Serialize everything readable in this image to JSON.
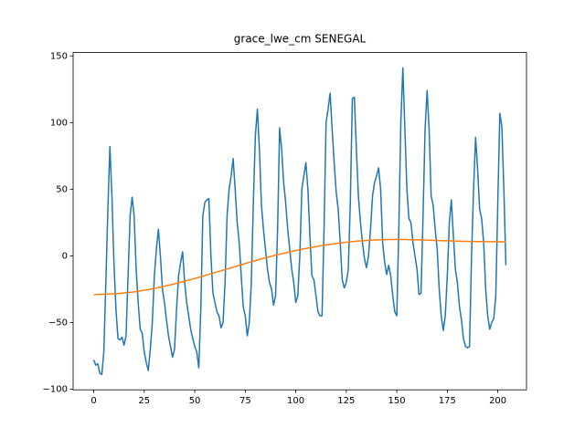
{
  "chart_data": {
    "type": "line",
    "title": "grace_lwe_cm SENEGAL",
    "xlim": [
      -10.2,
      214.2
    ],
    "xticks": [
      0,
      25,
      50,
      75,
      100,
      125,
      150,
      175,
      200
    ],
    "ylim": [
      -100.5,
      152.5
    ],
    "yticks": [
      {
        "value": -100,
        "label": "−100"
      },
      {
        "value": -50,
        "label": "−50"
      },
      0,
      50,
      100,
      150
    ],
    "grid": false,
    "series": [
      {
        "color": "#1f77b4",
        "values": [
          -78,
          -82,
          -81,
          -88,
          -89,
          -72,
          -20,
          35,
          82,
          45,
          -5,
          -40,
          -62,
          -63,
          -61,
          -67,
          -60,
          -15,
          30,
          44,
          30,
          -10,
          -35,
          -55,
          -58,
          -72,
          -80,
          -86,
          -70,
          -50,
          -15,
          5,
          20,
          0,
          -25,
          -35,
          -48,
          -60,
          -68,
          -76,
          -70,
          -40,
          -15,
          -5,
          3,
          -20,
          -35,
          -45,
          -55,
          -62,
          -68,
          -72,
          -84,
          -40,
          30,
          40,
          42,
          43,
          0,
          -28,
          -35,
          -42,
          -45,
          -54,
          -50,
          -20,
          30,
          50,
          60,
          73,
          50,
          25,
          10,
          -15,
          -38,
          -45,
          -60,
          -50,
          -20,
          40,
          90,
          110,
          80,
          38,
          20,
          5,
          -10,
          -20,
          -25,
          -37,
          -30,
          20,
          96,
          80,
          55,
          40,
          20,
          5,
          -10,
          -20,
          -35,
          -30,
          0,
          50,
          60,
          70,
          50,
          15,
          -15,
          -18,
          -30,
          -42,
          -45,
          -45,
          20,
          100,
          110,
          122,
          95,
          70,
          48,
          35,
          10,
          -18,
          -24,
          -20,
          -10,
          40,
          118,
          119,
          80,
          45,
          25,
          10,
          -2,
          -9,
          0,
          20,
          45,
          55,
          60,
          66,
          50,
          10,
          -5,
          -14,
          -7,
          -15,
          -30,
          -42,
          -45,
          20,
          100,
          141,
          95,
          50,
          28,
          25,
          10,
          0,
          -10,
          -29,
          -28,
          30,
          95,
          124,
          95,
          45,
          38,
          20,
          5,
          -25,
          -45,
          -56,
          -45,
          -15,
          25,
          42,
          15,
          -10,
          -20,
          -38,
          -48,
          -62,
          -68,
          -69,
          -68,
          0,
          50,
          89,
          65,
          35,
          28,
          10,
          -25,
          -45,
          -55,
          -50,
          -47,
          -30,
          40,
          107,
          97,
          50,
          -7
        ]
      },
      {
        "color": "#ff7f0e",
        "values": [
          -29,
          -29,
          -28.9,
          -28.9,
          -28.8,
          -28.8,
          -28.7,
          -28.7,
          -28.6,
          -28.6,
          -28.5,
          -28.4,
          -28.2,
          -28.1,
          -27.9,
          -27.8,
          -27.6,
          -27.5,
          -27.3,
          -27.2,
          -27,
          -26.8,
          -26.5,
          -26.3,
          -26,
          -25.8,
          -25.5,
          -25.3,
          -25,
          -24.8,
          -24.5,
          -24.2,
          -23.8,
          -23.5,
          -23.1,
          -22.8,
          -22.4,
          -22.1,
          -21.7,
          -21.4,
          -21,
          -20.6,
          -20.2,
          -19.8,
          -19.4,
          -19,
          -18.6,
          -18.2,
          -17.8,
          -17.4,
          -17,
          -16.6,
          -16.1,
          -15.7,
          -15.2,
          -14.8,
          -14.3,
          -13.9,
          -13.4,
          -13,
          -12.5,
          -12.1,
          -11.6,
          -11.2,
          -10.7,
          -10.3,
          -9.8,
          -9.4,
          -8.9,
          -8.5,
          -8,
          -7.6,
          -7.1,
          -6.7,
          -6.2,
          -5.8,
          -5.3,
          -4.9,
          -4.4,
          -4,
          -3.5,
          -3.1,
          -2.7,
          -2.3,
          -1.9,
          -1.5,
          -1.1,
          -0.7,
          -0.3,
          0.1,
          0.5,
          0.9,
          1.2,
          1.6,
          1.9,
          2.3,
          2.6,
          3,
          3.3,
          3.7,
          4,
          4.3,
          4.6,
          4.9,
          5.2,
          5.5,
          5.8,
          6.1,
          6.4,
          6.7,
          7,
          7.2,
          7.5,
          7.7,
          7.9,
          8.2,
          8.4,
          8.6,
          8.8,
          9.1,
          9.3,
          9.5,
          9.6,
          9.8,
          10,
          10.2,
          10.3,
          10.5,
          10.7,
          10.8,
          11,
          11.1,
          11.2,
          11.3,
          11.4,
          11.5,
          11.6,
          11.7,
          11.8,
          11.9,
          12,
          12,
          12.1,
          12.1,
          12.1,
          12.2,
          12.2,
          12.2,
          12.2,
          12.3,
          12.3,
          12.3,
          12.2,
          12.2,
          12.2,
          12.2,
          12.1,
          12.1,
          12.1,
          12,
          12,
          12,
          11.9,
          11.9,
          11.8,
          11.8,
          11.7,
          11.7,
          11.6,
          11.6,
          11.5,
          11.5,
          11.4,
          11.4,
          11.3,
          11.3,
          11.2,
          11.2,
          11.1,
          11.1,
          11,
          11,
          10.9,
          10.9,
          10.9,
          10.9,
          10.8,
          10.8,
          10.8,
          10.7,
          10.7,
          10.7,
          10.7,
          10.7,
          10.6,
          10.6,
          10.6,
          10.6,
          10.6,
          10.6,
          10.5,
          10.5,
          10.5,
          10.5,
          10.5
        ]
      }
    ]
  }
}
